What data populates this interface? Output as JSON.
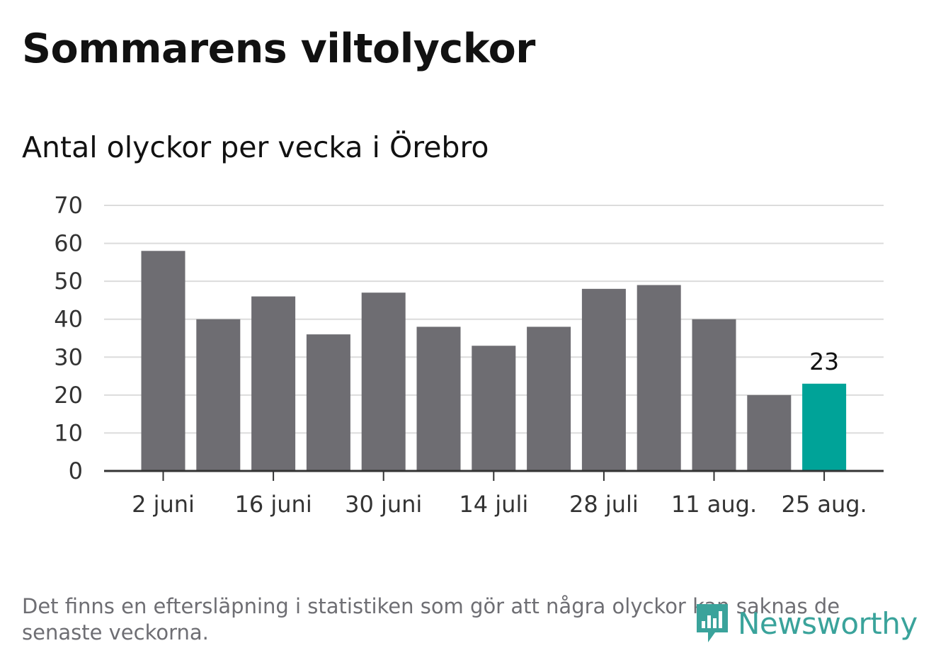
{
  "header": {
    "title": "Sommarens viltolyckor",
    "subtitle": "Antal olyckor per vecka i Örebro"
  },
  "chart_data": {
    "type": "bar",
    "categories": [
      "2 juni",
      "",
      "16 juni",
      "",
      "30 juni",
      "",
      "14 juli",
      "",
      "28 juli",
      "",
      "11 aug.",
      "",
      "25 aug."
    ],
    "values": [
      58,
      40,
      46,
      36,
      47,
      38,
      33,
      38,
      48,
      49,
      40,
      20,
      23
    ],
    "title": "Antal olyckor per vecka i Örebro",
    "xlabel": "",
    "ylabel": "",
    "ylim": [
      0,
      70
    ],
    "yticks": [
      0,
      10,
      20,
      30,
      40,
      50,
      60,
      70
    ],
    "grid": true,
    "bar_color": "#6e6d72",
    "highlight_color": "#00a398",
    "highlight_index": 12,
    "data_labels": [
      {
        "index": 12,
        "text": "23"
      }
    ]
  },
  "footer": {
    "note": "Det finns en eftersläpning i statistiken som gör att några olyckor kan saknas de senaste veckorna.",
    "logo_text": "Newsworthy",
    "logo_icon": "newsworthy-logo-icon"
  },
  "colors": {
    "grid": "#dcdcdc",
    "axis": "#333333",
    "text": "#111111",
    "muted": "#6e6e73",
    "brand": "#3aa39b"
  }
}
